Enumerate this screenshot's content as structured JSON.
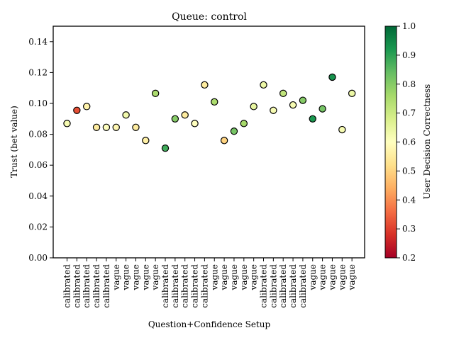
{
  "chart_data": {
    "type": "scatter",
    "title": "Queue: control",
    "xlabel": "Question+Confidence Setup",
    "ylabel": "Trust (bet value)",
    "ylim": [
      0,
      0.15
    ],
    "yticks": [
      "0.00",
      "0.02",
      "0.04",
      "0.06",
      "0.08",
      "0.10",
      "0.12",
      "0.14"
    ],
    "categories": [
      "calibrated",
      "calibrated",
      "calibrated",
      "calibrated",
      "calibrated",
      "vague",
      "vague",
      "vague",
      "vague",
      "vague",
      "calibrated",
      "calibrated",
      "calibrated",
      "calibrated",
      "calibrated",
      "vague",
      "vague",
      "vague",
      "vague",
      "vague",
      "calibrated",
      "calibrated",
      "calibrated",
      "calibrated",
      "calibrated",
      "vague",
      "vague",
      "vague",
      "vague",
      "vague"
    ],
    "values": [
      0.087,
      0.0955,
      0.098,
      0.0845,
      0.0845,
      0.0845,
      0.0925,
      0.0845,
      0.076,
      0.1065,
      0.071,
      0.09,
      0.0925,
      0.087,
      0.112,
      0.101,
      0.076,
      0.082,
      0.087,
      0.098,
      0.112,
      0.0955,
      0.1065,
      0.099,
      0.102,
      0.09,
      0.0965,
      0.117,
      0.083,
      0.1065
    ],
    "correctness": [
      0.62,
      0.32,
      0.57,
      0.55,
      0.6,
      0.58,
      0.63,
      0.55,
      0.56,
      0.75,
      0.88,
      0.8,
      0.55,
      0.6,
      0.55,
      0.75,
      0.5,
      0.82,
      0.76,
      0.65,
      0.64,
      0.62,
      0.72,
      0.62,
      0.8,
      0.92,
      0.82,
      0.93,
      0.62,
      0.64
    ],
    "colorbar": {
      "label": "User Decision Correctness",
      "range": [
        0.2,
        1.0
      ],
      "ticks": [
        "0.2",
        "0.3",
        "0.4",
        "0.5",
        "0.6",
        "0.7",
        "0.8",
        "0.9",
        "1.0"
      ],
      "colormap": [
        "#a50026",
        "#d73027",
        "#f46d43",
        "#fdae61",
        "#fee08b",
        "#ffffbf",
        "#d9ef8b",
        "#a6d96a",
        "#66bd63",
        "#1a9850",
        "#006837"
      ]
    },
    "grid": false,
    "legend": "none"
  }
}
